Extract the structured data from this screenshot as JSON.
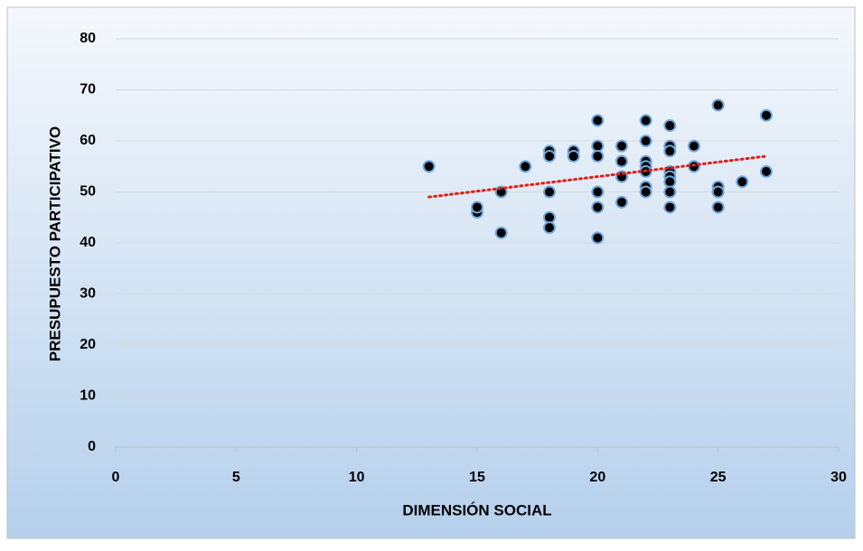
{
  "chart_data": {
    "type": "scatter",
    "xlabel": "DIMENSIÓN SOCIAL",
    "ylabel": "PRESUPUESTO PARTICIPATIVO",
    "xlim": [
      0,
      30
    ],
    "xticks": [
      0,
      5,
      10,
      15,
      20,
      25,
      30
    ],
    "ylim": [
      0,
      80
    ],
    "yticks": [
      0,
      10,
      20,
      30,
      40,
      50,
      60,
      70,
      80
    ],
    "grid": true,
    "series": [
      {
        "color": "#000000",
        "edge_color": "#6fa8dc",
        "x": [
          13,
          15,
          15,
          16,
          16,
          17,
          18,
          18,
          18,
          18,
          18,
          19,
          19,
          20,
          20,
          20,
          20,
          20,
          20,
          21,
          21,
          21,
          21,
          22,
          22,
          22,
          22,
          22,
          22,
          22,
          23,
          23,
          23,
          23,
          23,
          23,
          23,
          23,
          24,
          24,
          25,
          25,
          25,
          25,
          26,
          27,
          27
        ],
        "values": [
          55,
          46,
          47,
          50,
          42,
          55,
          58,
          57,
          50,
          45,
          43,
          58,
          57,
          64,
          59,
          57,
          50,
          47,
          41,
          59,
          56,
          53,
          48,
          64,
          60,
          56,
          55,
          54,
          51,
          50,
          63,
          59,
          58,
          54,
          53,
          52,
          50,
          47,
          59,
          55,
          67,
          51,
          50,
          47,
          52,
          65,
          54
        ]
      }
    ],
    "trendline": {
      "color": "#e0201b",
      "x": [
        13,
        27
      ],
      "values": [
        49,
        57
      ]
    }
  }
}
